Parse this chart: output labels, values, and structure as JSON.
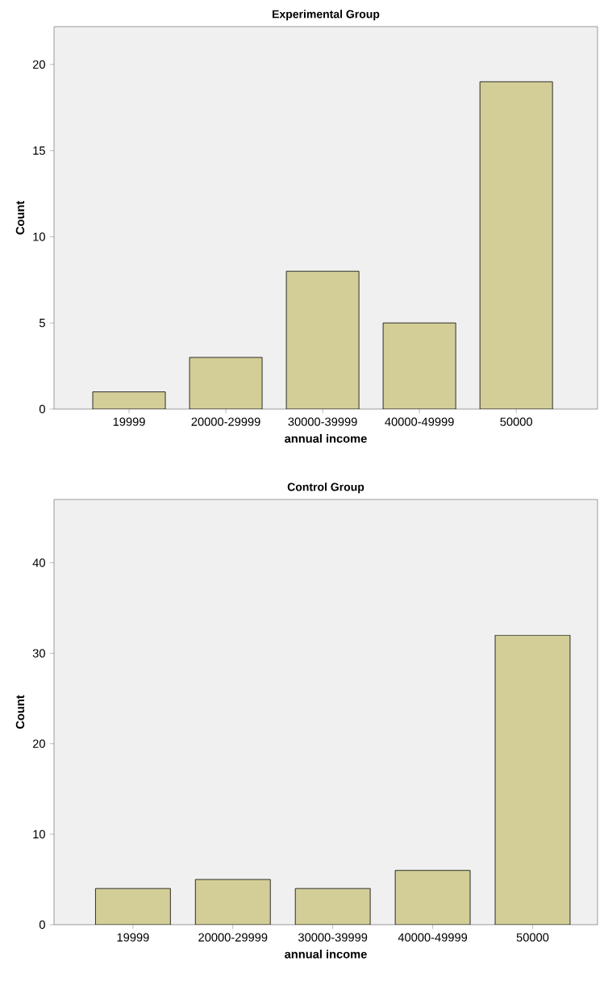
{
  "chart_data": [
    {
      "type": "bar",
      "title": "Experimental Group",
      "xlabel": "annual income",
      "ylabel": "Count",
      "categories": [
        "19999",
        "20000-29999",
        "30000-39999",
        "40000-49999",
        "50000"
      ],
      "values": [
        1,
        3,
        8,
        5,
        19
      ],
      "color": "#d3ce97",
      "ylim": [
        0,
        22.2
      ],
      "yticks": [
        0,
        5,
        10,
        15,
        20
      ]
    },
    {
      "type": "bar",
      "title": "Control Group",
      "xlabel": "annual income",
      "ylabel": "Count",
      "categories": [
        "19999",
        "20000-29999",
        "30000-39999",
        "40000-49999",
        "50000"
      ],
      "values": [
        4,
        5,
        4,
        6,
        32
      ],
      "color": "#d3ce97",
      "ylim": [
        0,
        47
      ],
      "yticks": [
        0,
        10,
        20,
        30,
        40
      ]
    }
  ]
}
